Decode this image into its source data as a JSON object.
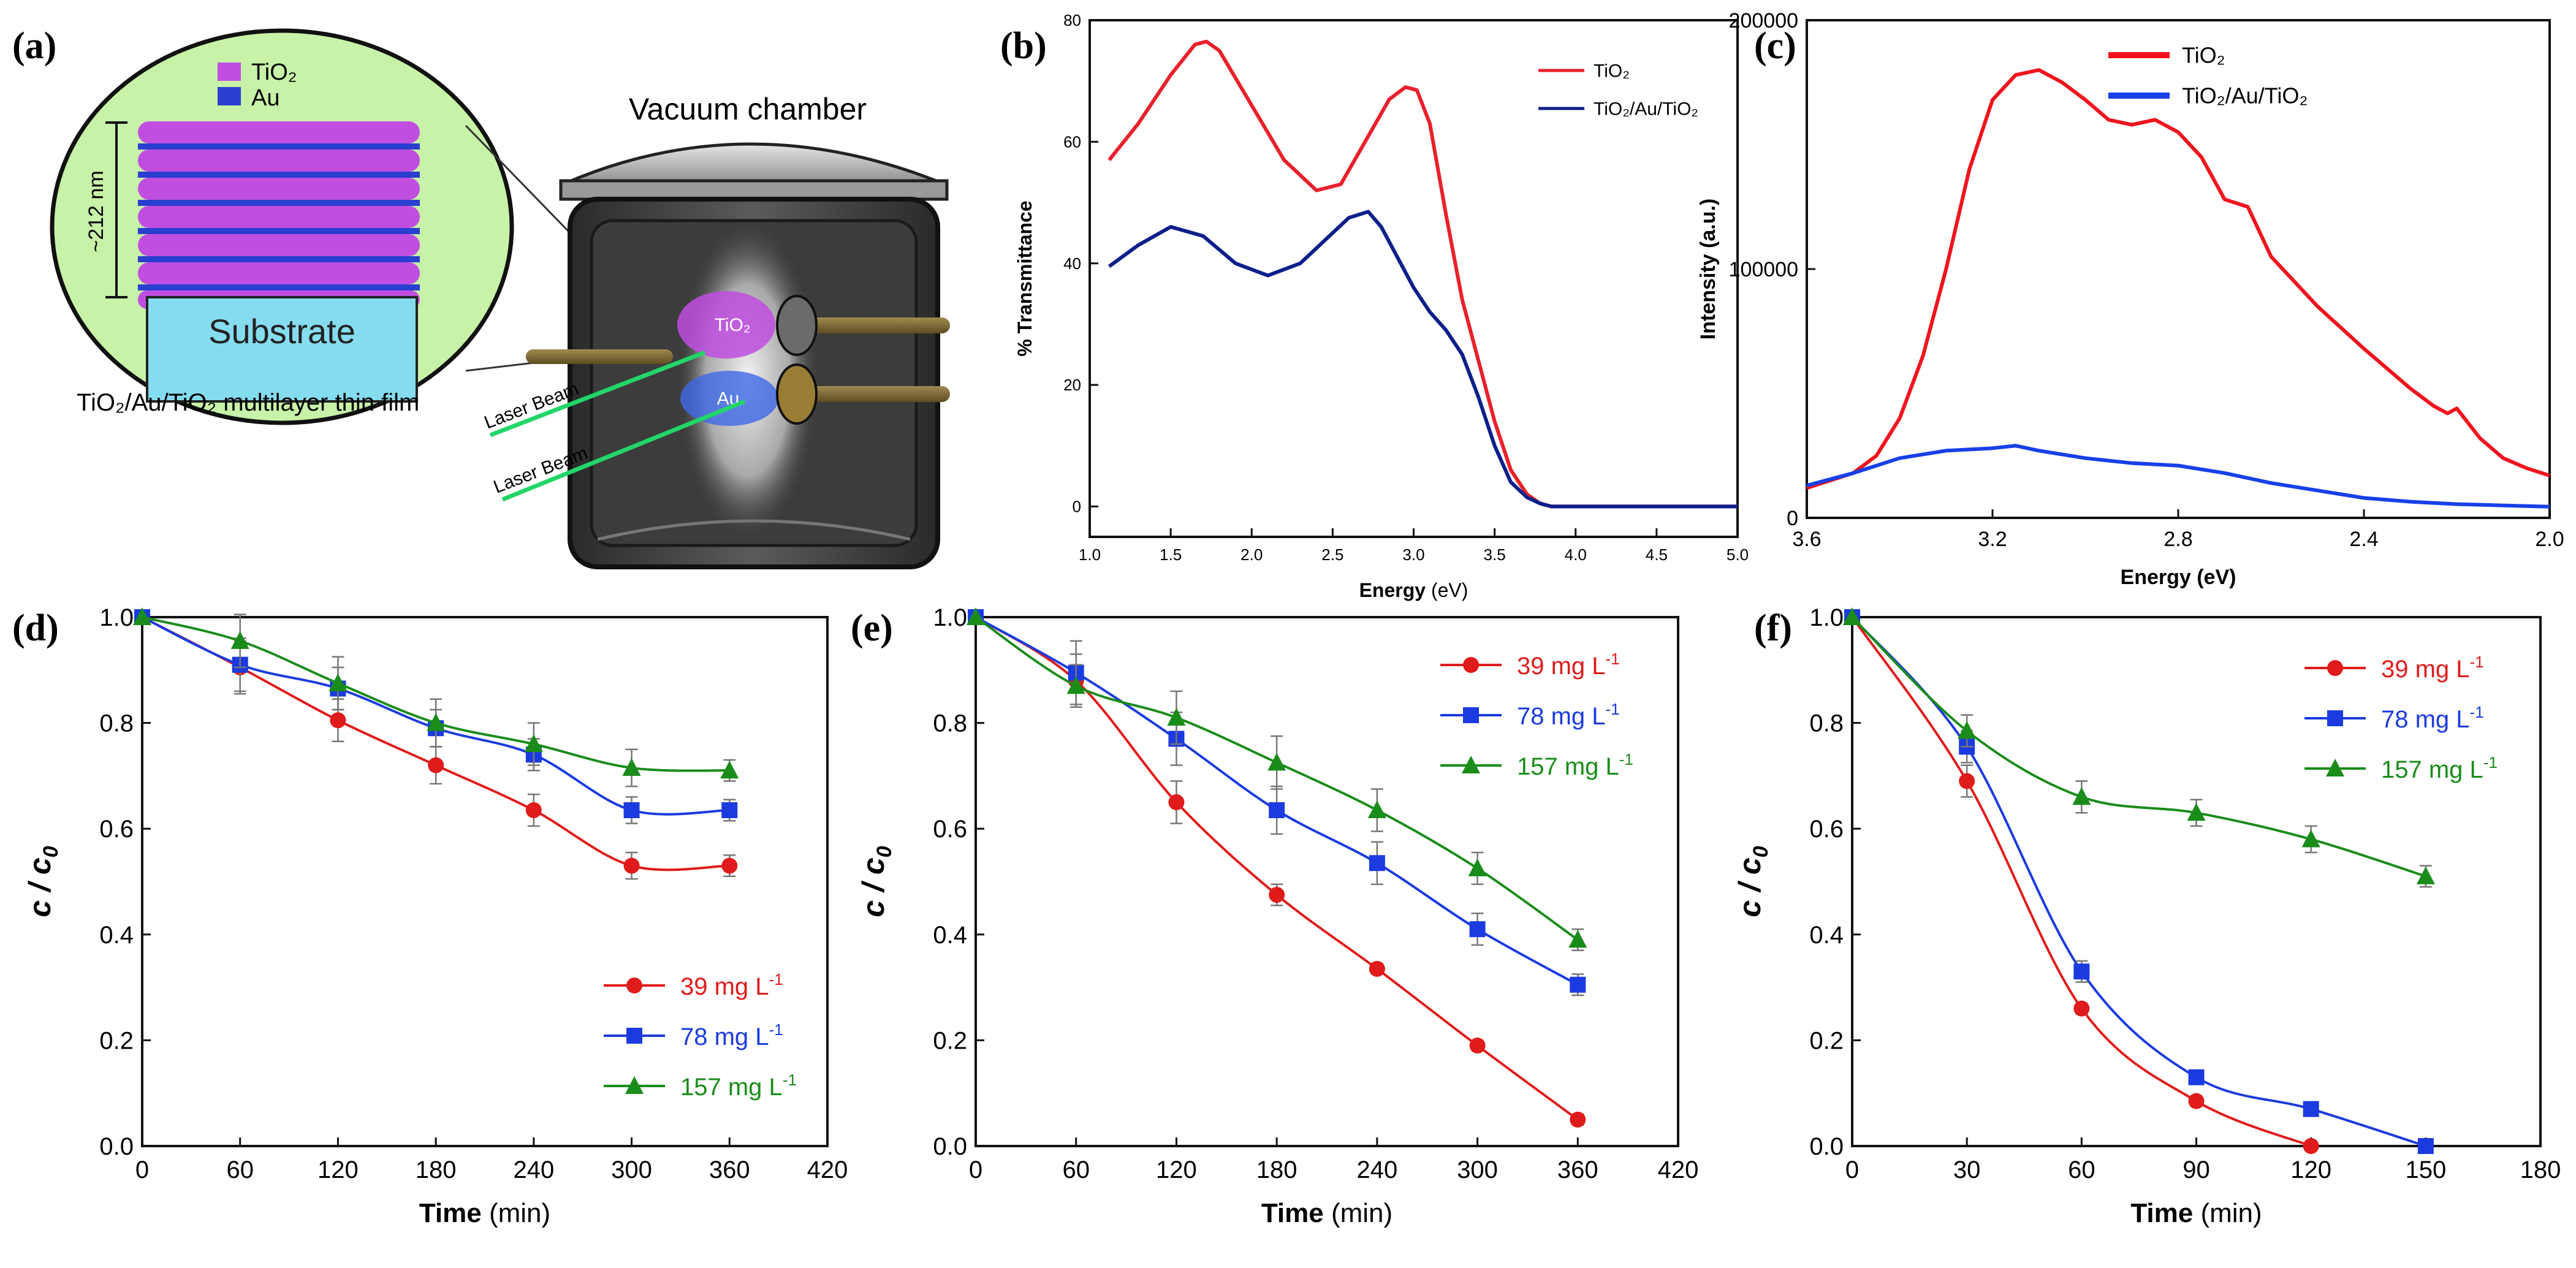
{
  "schematic": {
    "panel_label": "(a)",
    "legend_tio2": "TiO₂",
    "legend_au": "Au",
    "thickness": "~212 nm",
    "substrate": "Substrate",
    "film_caption": "TiO₂/Au/TiO₂ multilayer thin film",
    "chamber_title": "Vacuum chamber",
    "target_tio2": "TiO₂",
    "target_au": "Au",
    "laser_1": "Laser Beam",
    "laser_2": "Laser Beam",
    "colors": {
      "tio2": "#c04ee0",
      "au": "#2a3fd0",
      "bubble": "#c7f2a8",
      "substrate": "#86dcef"
    }
  },
  "chart_data": [
    {
      "id": "b",
      "panel_label": "(b)",
      "type": "line",
      "title": "",
      "xlabel": "Energy",
      "xlabel_unit": " (eV)",
      "ylabel": "% Transmittance",
      "xlim": [
        1.0,
        5.0
      ],
      "ylim": [
        -5,
        80
      ],
      "xticks": [
        "1.0",
        "1.5",
        "2.0",
        "2.5",
        "3.0",
        "3.5",
        "4.0",
        "4.5",
        "5.0"
      ],
      "yticks": [
        "0",
        "20",
        "40",
        "60",
        "80"
      ],
      "legend_position": "top-right",
      "series": [
        {
          "name": "TiO2",
          "color": "#e8212b",
          "x": [
            1.12,
            1.3,
            1.5,
            1.65,
            1.72,
            1.8,
            2.0,
            2.2,
            2.4,
            2.55,
            2.7,
            2.85,
            2.95,
            3.02,
            3.1,
            3.2,
            3.3,
            3.4,
            3.5,
            3.6,
            3.7,
            3.78,
            3.85,
            3.95,
            4.1,
            5.0
          ],
          "y": [
            57,
            63,
            71,
            76,
            76.5,
            75,
            66,
            57,
            52,
            53,
            60,
            67,
            69,
            68.5,
            63,
            48,
            34,
            24,
            14,
            6,
            2,
            0.5,
            0,
            0,
            0,
            0
          ]
        },
        {
          "name": "TiO2/Au/TiO2",
          "color": "#0c1f8a",
          "x": [
            1.12,
            1.3,
            1.5,
            1.7,
            1.9,
            2.1,
            2.3,
            2.5,
            2.6,
            2.72,
            2.8,
            2.9,
            3.0,
            3.1,
            3.2,
            3.3,
            3.4,
            3.5,
            3.6,
            3.7,
            3.78,
            3.85,
            3.95,
            4.1,
            5.0
          ],
          "y": [
            39.5,
            43,
            46,
            44.5,
            40,
            38,
            40,
            45,
            47.5,
            48.5,
            46,
            41,
            36,
            32,
            29,
            25,
            18,
            10,
            4,
            1.5,
            0.5,
            0,
            0,
            0,
            0
          ]
        }
      ]
    },
    {
      "id": "c",
      "panel_label": "(c)",
      "type": "line",
      "title": "",
      "xlabel": "Energy (eV)",
      "ylabel": "Intensity (a.u.)",
      "xlim": [
        3.6,
        2.0
      ],
      "ylim": [
        0,
        200000
      ],
      "xticks": [
        "3.6",
        "3.2",
        "2.8",
        "2.4",
        "2.0"
      ],
      "yticks": [
        "0",
        "100000",
        "200000"
      ],
      "legend_position": "top-right",
      "series": [
        {
          "name": "TiO2",
          "color": "#f0141e",
          "x": [
            3.6,
            3.5,
            3.45,
            3.4,
            3.35,
            3.3,
            3.25,
            3.2,
            3.15,
            3.1,
            3.05,
            3.0,
            2.95,
            2.9,
            2.85,
            2.8,
            2.75,
            2.7,
            2.65,
            2.6,
            2.5,
            2.4,
            2.3,
            2.25,
            2.22,
            2.2,
            2.15,
            2.1,
            2.05,
            2.0
          ],
          "y": [
            12000,
            18000,
            25000,
            40000,
            65000,
            100000,
            140000,
            168000,
            178000,
            180000,
            175000,
            168000,
            160000,
            158000,
            160000,
            155000,
            145000,
            128000,
            125000,
            105000,
            85000,
            68000,
            52000,
            45000,
            42000,
            44000,
            32000,
            24000,
            20000,
            17000
          ]
        },
        {
          "name": "TiO2/Au/TiO2",
          "color": "#1740e8",
          "x": [
            3.6,
            3.5,
            3.4,
            3.3,
            3.2,
            3.15,
            3.1,
            3.0,
            2.9,
            2.8,
            2.7,
            2.6,
            2.5,
            2.4,
            2.3,
            2.2,
            2.1,
            2.0
          ],
          "y": [
            13000,
            18000,
            24000,
            27000,
            28000,
            29000,
            27000,
            24000,
            22000,
            21000,
            18000,
            14000,
            11000,
            8000,
            6500,
            5500,
            5000,
            4500
          ]
        }
      ]
    },
    {
      "id": "d",
      "panel_label": "(d)",
      "type": "line",
      "title": "",
      "xlabel": "Time",
      "xlabel_unit": " (min)",
      "ylabel": "c / c0",
      "xlim": [
        0,
        420
      ],
      "ylim": [
        0,
        1.0
      ],
      "xticks": [
        "0",
        "60",
        "120",
        "180",
        "240",
        "300",
        "360",
        "420"
      ],
      "yticks": [
        "0.0",
        "0.2",
        "0.4",
        "0.6",
        "0.8",
        "1.0"
      ],
      "legend_position": "bottom-right",
      "series": [
        {
          "name": "39 mg L-1",
          "legend_main": "39 mg L",
          "legend_sup": "-1",
          "color": "#e01b1b",
          "marker": "circle",
          "x": [
            0,
            60,
            120,
            180,
            240,
            300,
            360
          ],
          "y": [
            1.0,
            0.905,
            0.805,
            0.72,
            0.635,
            0.53,
            0.53
          ],
          "err": [
            0,
            0.05,
            0.04,
            0.035,
            0.03,
            0.025,
            0.02
          ]
        },
        {
          "name": "78 mg L-1",
          "legend_main": "78 mg L",
          "legend_sup": "-1",
          "color": "#1b3be0",
          "marker": "square",
          "x": [
            0,
            60,
            120,
            180,
            240,
            300,
            360
          ],
          "y": [
            1.0,
            0.91,
            0.865,
            0.79,
            0.74,
            0.635,
            0.635
          ],
          "err": [
            0,
            0.05,
            0.04,
            0.035,
            0.03,
            0.025,
            0.02
          ]
        },
        {
          "name": "157 mg L-1",
          "legend_main": "157 mg L",
          "legend_sup": "-1",
          "color": "#1a8c1a",
          "marker": "triangle",
          "x": [
            0,
            60,
            120,
            180,
            240,
            300,
            360
          ],
          "y": [
            1.0,
            0.955,
            0.875,
            0.8,
            0.76,
            0.715,
            0.71
          ],
          "err": [
            0,
            0.05,
            0.05,
            0.045,
            0.04,
            0.035,
            0.02
          ]
        }
      ]
    },
    {
      "id": "e",
      "panel_label": "(e)",
      "type": "line",
      "title": "",
      "xlabel": "Time",
      "xlabel_unit": " (min)",
      "ylabel": "c / c0",
      "xlim": [
        0,
        420
      ],
      "ylim": [
        0,
        1.0
      ],
      "xticks": [
        "0",
        "60",
        "120",
        "180",
        "240",
        "300",
        "360",
        "420"
      ],
      "yticks": [
        "0.0",
        "0.2",
        "0.4",
        "0.6",
        "0.8",
        "1.0"
      ],
      "legend_position": "top-right",
      "series": [
        {
          "name": "39 mg L-1",
          "legend_main": "39 mg L",
          "legend_sup": "-1",
          "color": "#e01b1b",
          "marker": "circle",
          "x": [
            0,
            60,
            120,
            180,
            240,
            300,
            360
          ],
          "y": [
            1.0,
            0.88,
            0.65,
            0.475,
            0.335,
            0.19,
            0.05
          ],
          "err": [
            0,
            0.05,
            0.04,
            0.02,
            0.01,
            0.01,
            0.01
          ]
        },
        {
          "name": "78 mg L-1",
          "legend_main": "78 mg L",
          "legend_sup": "-1",
          "color": "#1b3be0",
          "marker": "square",
          "x": [
            0,
            60,
            120,
            180,
            240,
            300,
            360
          ],
          "y": [
            1.0,
            0.895,
            0.77,
            0.635,
            0.535,
            0.41,
            0.305
          ],
          "err": [
            0,
            0.06,
            0.05,
            0.045,
            0.04,
            0.03,
            0.02
          ]
        },
        {
          "name": "157 mg L-1",
          "legend_main": "157 mg L",
          "legend_sup": "-1",
          "color": "#1a8c1a",
          "marker": "triangle",
          "x": [
            0,
            60,
            120,
            180,
            240,
            300,
            360
          ],
          "y": [
            1.0,
            0.87,
            0.81,
            0.725,
            0.635,
            0.525,
            0.39
          ],
          "err": [
            0,
            0.04,
            0.05,
            0.05,
            0.04,
            0.03,
            0.02
          ]
        }
      ]
    },
    {
      "id": "f",
      "panel_label": "(f)",
      "type": "line",
      "title": "",
      "xlabel": "Time",
      "xlabel_unit": " (min)",
      "ylabel": "c / c0",
      "xlim": [
        0,
        180
      ],
      "ylim": [
        0,
        1.0
      ],
      "xticks": [
        "0",
        "30",
        "60",
        "90",
        "120",
        "150",
        "180"
      ],
      "yticks": [
        "0.0",
        "0.2",
        "0.4",
        "0.6",
        "0.8",
        "1.0"
      ],
      "legend_position": "top-right",
      "series": [
        {
          "name": "39 mg L-1",
          "legend_main": "39 mg L",
          "legend_sup": "-1",
          "color": "#e01b1b",
          "marker": "circle",
          "x": [
            0,
            30,
            60,
            90,
            120
          ],
          "y": [
            1.0,
            0.69,
            0.26,
            0.085,
            0.0
          ],
          "err": [
            0,
            0.03,
            0.01,
            0.01,
            0.005
          ]
        },
        {
          "name": "78 mg L-1",
          "legend_main": "78 mg L",
          "legend_sup": "-1",
          "color": "#1b3be0",
          "marker": "square",
          "x": [
            0,
            30,
            60,
            90,
            120,
            150
          ],
          "y": [
            1.0,
            0.755,
            0.33,
            0.13,
            0.07,
            0.0
          ],
          "err": [
            0,
            0.03,
            0.02,
            0.01,
            0.01,
            0.005
          ]
        },
        {
          "name": "157 mg L-1",
          "legend_main": "157 mg L",
          "legend_sup": "-1",
          "color": "#1a8c1a",
          "marker": "triangle",
          "x": [
            0,
            30,
            60,
            90,
            120,
            150
          ],
          "y": [
            1.0,
            0.785,
            0.66,
            0.63,
            0.58,
            0.51
          ],
          "err": [
            0,
            0.03,
            0.03,
            0.025,
            0.025,
            0.02
          ]
        }
      ]
    }
  ]
}
